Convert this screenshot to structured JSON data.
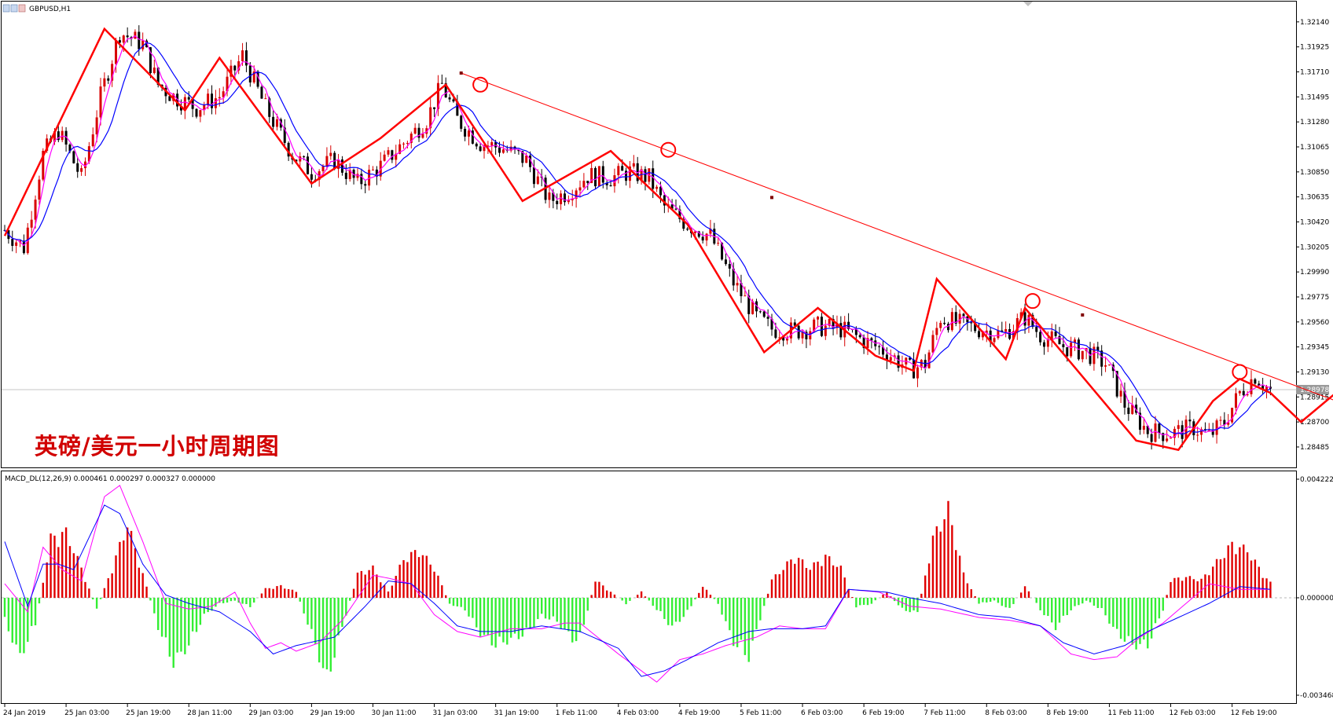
{
  "symbol_label": "GBPUSD,H1",
  "overlay_title": "英磅/美元一小时周期图",
  "current_price_label": "1.28978",
  "colors": {
    "bull": "#d80000",
    "bear": "#000000",
    "fast_ma": "#ff00ff",
    "slow_ma": "#0000ff",
    "zigzag": "#ff0000",
    "trendline": "#ff0000",
    "macd_pos": "#e00000",
    "macd_neg": "#33ee33",
    "signal": "#ff00ff",
    "macd_line": "#0000ff"
  },
  "chart_data": [
    {
      "type": "candlestick",
      "title": "GBPUSD,H1",
      "y_ticks": [
        "1.32140",
        "1.31925",
        "1.31710",
        "1.31495",
        "1.31280",
        "1.31065",
        "1.30850",
        "1.30635",
        "1.30420",
        "1.30205",
        "1.29990",
        "1.29775",
        "1.29560",
        "1.29345",
        "1.29130",
        "1.28915",
        "1.28700",
        "1.28485"
      ],
      "ylim": [
        1.2837,
        1.3222
      ],
      "x_ticks": [
        "24 Jan 2019",
        "25 Jan 03:00",
        "25 Jan 19:00",
        "28 Jan 11:00",
        "29 Jan 03:00",
        "29 Jan 19:00",
        "30 Jan 11:00",
        "31 Jan 03:00",
        "31 Jan 19:00",
        "1 Feb 11:00",
        "4 Feb 03:00",
        "4 Feb 19:00",
        "5 Feb 11:00",
        "6 Feb 03:00",
        "6 Feb 19:00",
        "7 Feb 11:00",
        "8 Feb 03:00",
        "8 Feb 19:00",
        "11 Feb 11:00",
        "12 Feb 03:00",
        "12 Feb 19:00"
      ],
      "bars_per_tick": 16,
      "current_price": 1.28978,
      "anchors": [
        [
          0,
          1.3035
        ],
        [
          5,
          1.302
        ],
        [
          10,
          1.31
        ],
        [
          14,
          1.312
        ],
        [
          20,
          1.308
        ],
        [
          25,
          1.315
        ],
        [
          30,
          1.3205
        ],
        [
          36,
          1.3195
        ],
        [
          40,
          1.316
        ],
        [
          44,
          1.315
        ],
        [
          50,
          1.314
        ],
        [
          56,
          1.315
        ],
        [
          62,
          1.3185
        ],
        [
          68,
          1.314
        ],
        [
          75,
          1.31
        ],
        [
          80,
          1.3085
        ],
        [
          86,
          1.3095
        ],
        [
          92,
          1.3075
        ],
        [
          98,
          1.309
        ],
        [
          104,
          1.311
        ],
        [
          110,
          1.313
        ],
        [
          114,
          1.316
        ],
        [
          118,
          1.313
        ],
        [
          124,
          1.311
        ],
        [
          130,
          1.3105
        ],
        [
          136,
          1.3095
        ],
        [
          142,
          1.306
        ],
        [
          147,
          1.3068
        ],
        [
          152,
          1.3082
        ],
        [
          158,
          1.308
        ],
        [
          163,
          1.3085
        ],
        [
          168,
          1.308
        ],
        [
          172,
          1.3055
        ],
        [
          178,
          1.304
        ],
        [
          184,
          1.303
        ],
        [
          190,
          1.299
        ],
        [
          196,
          1.296
        ],
        [
          200,
          1.295
        ],
        [
          206,
          1.2948
        ],
        [
          212,
          1.2952
        ],
        [
          218,
          1.295
        ],
        [
          224,
          1.294
        ],
        [
          230,
          1.293
        ],
        [
          236,
          1.2915
        ],
        [
          240,
          1.292
        ],
        [
          244,
          1.296
        ],
        [
          248,
          1.2955
        ],
        [
          254,
          1.295
        ],
        [
          260,
          1.2945
        ],
        [
          266,
          1.296
        ],
        [
          270,
          1.2945
        ],
        [
          276,
          1.2935
        ],
        [
          282,
          1.293
        ],
        [
          287,
          1.292
        ],
        [
          292,
          1.2885
        ],
        [
          298,
          1.2862
        ],
        [
          304,
          1.286
        ],
        [
          310,
          1.2865
        ],
        [
          314,
          1.2858
        ],
        [
          318,
          1.287
        ],
        [
          322,
          1.2895
        ],
        [
          326,
          1.291
        ],
        [
          329,
          1.29
        ],
        [
          330,
          1.2897
        ]
      ],
      "overlays": {
        "zigzag": [
          [
            0,
            1.303
          ],
          [
            26,
            1.3208
          ],
          [
            47,
            1.3138
          ],
          [
            56,
            1.3183
          ],
          [
            80,
            1.3075
          ],
          [
            98,
            1.3114
          ],
          [
            115,
            1.316
          ],
          [
            135,
            1.306
          ],
          [
            158,
            1.3103
          ],
          [
            178,
            1.304
          ],
          [
            198,
            1.293
          ],
          [
            212,
            1.2968
          ],
          [
            227,
            1.2927
          ],
          [
            237,
            1.2914
          ],
          [
            243,
            1.2993
          ],
          [
            261,
            1.2924
          ],
          [
            266,
            1.2968
          ],
          [
            295,
            1.2854
          ],
          [
            306,
            1.2846
          ],
          [
            315,
            1.2888
          ],
          [
            322,
            1.2907
          ],
          [
            330,
            1.2895
          ]
        ],
        "projection": [
          [
            330,
            1.2895
          ],
          [
            338,
            1.287
          ],
          [
            367,
            1.295
          ]
        ],
        "trendline": [
          [
            119,
            1.317
          ],
          [
            386,
            1.284
          ]
        ],
        "trendline_markers": [
          [
            119,
            1.317
          ],
          [
            200,
            1.3063
          ],
          [
            281,
            1.2962
          ]
        ],
        "circles": [
          [
            124,
            1.316
          ],
          [
            173,
            1.3104
          ],
          [
            268,
            1.2974
          ],
          [
            322,
            1.2913
          ]
        ]
      }
    },
    {
      "type": "histogram+lines",
      "title": "MACD_DL(12,26,9) 0.000461 0.000297 0.000327 0.000000",
      "y_ticks": [
        "0.004222",
        "0.000000",
        "-0.003468"
      ],
      "ylim": [
        -0.003468,
        0.004222
      ],
      "hist_anchors": [
        [
          0,
          -0.0008
        ],
        [
          4,
          -0.002
        ],
        [
          8,
          -0.0009
        ],
        [
          12,
          0.002
        ],
        [
          16,
          0.0022
        ],
        [
          20,
          0.001
        ],
        [
          24,
          -0.0004
        ],
        [
          28,
          0.001
        ],
        [
          32,
          0.0025
        ],
        [
          36,
          0.0008
        ],
        [
          40,
          -0.001
        ],
        [
          44,
          -0.0022
        ],
        [
          48,
          -0.0016
        ],
        [
          52,
          -0.0006
        ],
        [
          56,
          -0.0002
        ],
        [
          60,
          -0.0001
        ],
        [
          64,
          -0.0003
        ],
        [
          68,
          0.0003
        ],
        [
          72,
          0.0004
        ],
        [
          76,
          0.0002
        ],
        [
          80,
          -0.0012
        ],
        [
          84,
          -0.0028
        ],
        [
          88,
          -0.001
        ],
        [
          92,
          0.0008
        ],
        [
          96,
          0.001
        ],
        [
          100,
          0.0002
        ],
        [
          104,
          0.0013
        ],
        [
          108,
          0.0016
        ],
        [
          112,
          0.001
        ],
        [
          116,
          -0.0002
        ],
        [
          120,
          -0.0004
        ],
        [
          124,
          -0.0012
        ],
        [
          128,
          -0.0016
        ],
        [
          132,
          -0.0014
        ],
        [
          136,
          -0.0012
        ],
        [
          140,
          -0.0006
        ],
        [
          144,
          -0.0008
        ],
        [
          148,
          -0.0014
        ],
        [
          150,
          -0.0014
        ],
        [
          154,
          0.0006
        ],
        [
          158,
          0.0002
        ],
        [
          162,
          -0.0002
        ],
        [
          166,
          0.0002
        ],
        [
          170,
          -0.0004
        ],
        [
          174,
          -0.001
        ],
        [
          178,
          -0.0005
        ],
        [
          182,
          0.0004
        ],
        [
          186,
          -0.0002
        ],
        [
          190,
          -0.0015
        ],
        [
          194,
          -0.002
        ],
        [
          200,
          0.0006
        ],
        [
          206,
          0.0014
        ],
        [
          210,
          0.001
        ],
        [
          214,
          0.0014
        ],
        [
          218,
          0.001
        ],
        [
          222,
          -0.0003
        ],
        [
          226,
          -0.0002
        ],
        [
          230,
          0.0002
        ],
        [
          234,
          -0.0004
        ],
        [
          238,
          -0.0005
        ],
        [
          242,
          0.002
        ],
        [
          246,
          0.003
        ],
        [
          250,
          0.0008
        ],
        [
          254,
          -0.0002
        ],
        [
          258,
          -0.0001
        ],
        [
          262,
          -0.0004
        ],
        [
          266,
          0.0004
        ],
        [
          270,
          -0.0004
        ],
        [
          274,
          -0.001
        ],
        [
          278,
          -0.0004
        ],
        [
          282,
          -0.0001
        ],
        [
          286,
          -0.0004
        ],
        [
          290,
          -0.0012
        ],
        [
          294,
          -0.0016
        ],
        [
          298,
          -0.0016
        ],
        [
          302,
          -0.0004
        ],
        [
          304,
          0.0006
        ],
        [
          308,
          0.0007
        ],
        [
          312,
          0.0006
        ],
        [
          316,
          0.0012
        ],
        [
          320,
          0.0018
        ],
        [
          324,
          0.0016
        ],
        [
          328,
          0.0008
        ],
        [
          330,
          0.0005
        ]
      ],
      "signal_anchors": [
        [
          0,
          0.0005
        ],
        [
          6,
          -0.0005
        ],
        [
          10,
          0.0018
        ],
        [
          15,
          0.001
        ],
        [
          20,
          0.0006
        ],
        [
          26,
          0.0036
        ],
        [
          30,
          0.004
        ],
        [
          36,
          0.002
        ],
        [
          42,
          -0.0002
        ],
        [
          48,
          -0.0004
        ],
        [
          54,
          -0.0003
        ],
        [
          60,
          0.0002
        ],
        [
          64,
          -0.0009
        ],
        [
          68,
          -0.0018
        ],
        [
          72,
          -0.0016
        ],
        [
          76,
          -0.0019
        ],
        [
          82,
          -0.0016
        ],
        [
          88,
          -0.0008
        ],
        [
          96,
          0.0008
        ],
        [
          100,
          0.0007
        ],
        [
          106,
          0.0005
        ],
        [
          112,
          -0.0006
        ],
        [
          118,
          -0.0012
        ],
        [
          124,
          -0.0014
        ],
        [
          132,
          -0.0011
        ],
        [
          140,
          -0.0011
        ],
        [
          146,
          -0.0009
        ],
        [
          150,
          -0.0009
        ],
        [
          160,
          -0.002
        ],
        [
          170,
          -0.003
        ],
        [
          176,
          -0.0022
        ],
        [
          182,
          -0.002
        ],
        [
          188,
          -0.0017
        ],
        [
          196,
          -0.0014
        ],
        [
          202,
          -0.001
        ],
        [
          208,
          -0.0011
        ],
        [
          214,
          -0.0011
        ],
        [
          220,
          0.0003
        ],
        [
          228,
          0.0002
        ],
        [
          236,
          -0.0003
        ],
        [
          244,
          -0.0004
        ],
        [
          254,
          -0.0007
        ],
        [
          262,
          -0.0008
        ],
        [
          270,
          -0.001
        ],
        [
          278,
          -0.002
        ],
        [
          284,
          -0.0022
        ],
        [
          290,
          -0.0021
        ],
        [
          296,
          -0.0014
        ],
        [
          302,
          -0.0009
        ],
        [
          308,
          -0.0002
        ],
        [
          314,
          0.0005
        ],
        [
          322,
          0.0003
        ],
        [
          330,
          0.0003
        ]
      ],
      "macd_line_anchors": [
        [
          0,
          0.002
        ],
        [
          6,
          -0.0003
        ],
        [
          10,
          0.0012
        ],
        [
          14,
          0.0012
        ],
        [
          18,
          0.001
        ],
        [
          26,
          0.0033
        ],
        [
          30,
          0.003
        ],
        [
          36,
          0.0012
        ],
        [
          42,
          0.0001
        ],
        [
          48,
          -0.0002
        ],
        [
          56,
          -0.0005
        ],
        [
          64,
          -0.0012
        ],
        [
          70,
          -0.002
        ],
        [
          76,
          -0.0017
        ],
        [
          86,
          -0.0014
        ],
        [
          94,
          -0.0003
        ],
        [
          100,
          0.0006
        ],
        [
          106,
          0.0005
        ],
        [
          112,
          -0.0002
        ],
        [
          118,
          -0.001
        ],
        [
          124,
          -0.0012
        ],
        [
          132,
          -0.0012
        ],
        [
          140,
          -0.001
        ],
        [
          150,
          -0.0012
        ],
        [
          160,
          -0.0018
        ],
        [
          166,
          -0.0028
        ],
        [
          172,
          -0.0026
        ],
        [
          178,
          -0.0022
        ],
        [
          186,
          -0.0016
        ],
        [
          194,
          -0.0012
        ],
        [
          200,
          -0.0011
        ],
        [
          208,
          -0.0011
        ],
        [
          214,
          -0.001
        ],
        [
          220,
          0.0003
        ],
        [
          230,
          0.0002
        ],
        [
          236,
          0.0
        ],
        [
          244,
          -0.0002
        ],
        [
          254,
          -0.0006
        ],
        [
          262,
          -0.0007
        ],
        [
          270,
          -0.001
        ],
        [
          276,
          -0.0016
        ],
        [
          284,
          -0.002
        ],
        [
          292,
          -0.0017
        ],
        [
          298,
          -0.0012
        ],
        [
          306,
          -0.0007
        ],
        [
          314,
          -0.0002
        ],
        [
          322,
          0.0004
        ],
        [
          330,
          0.0003
        ]
      ]
    }
  ]
}
